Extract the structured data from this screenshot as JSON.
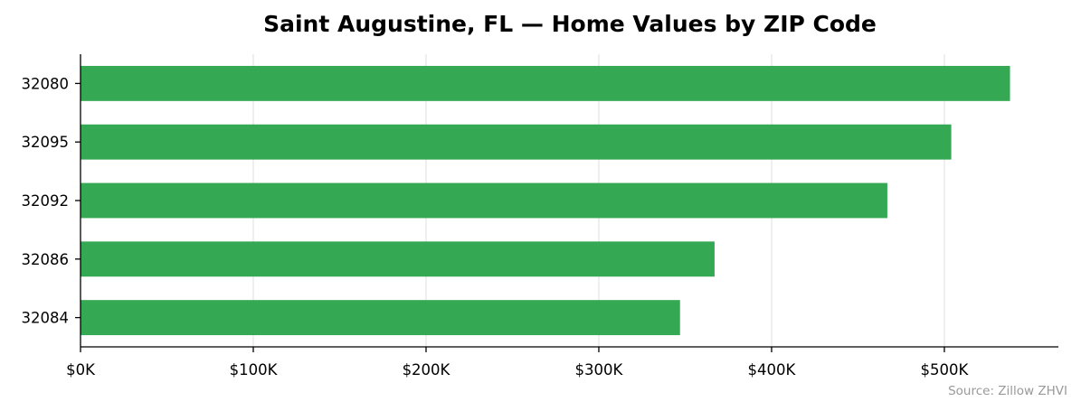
{
  "chart_data": {
    "type": "bar",
    "orientation": "horizontal",
    "title": "Saint Augustine, FL — Home Values by ZIP Code",
    "xlabel": "",
    "ylabel": "",
    "categories": [
      "32080",
      "32095",
      "32092",
      "32086",
      "32084"
    ],
    "values": [
      538000,
      504000,
      467000,
      367000,
      347000
    ],
    "xlim": [
      0,
      566000
    ],
    "xticks": [
      0,
      100000,
      200000,
      300000,
      400000,
      500000
    ],
    "xtick_labels": [
      "$0K",
      "$100K",
      "$200K",
      "$300K",
      "$400K",
      "$500K"
    ],
    "bar_color": "#35a853",
    "grid": "x",
    "source": "Source: Zillow ZHVI"
  }
}
